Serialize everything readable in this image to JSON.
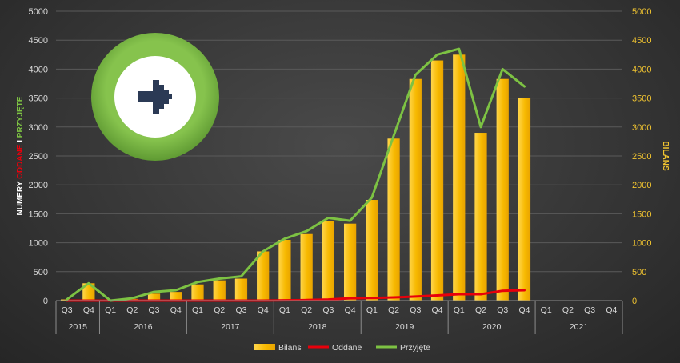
{
  "chart_data": {
    "type": "bar",
    "categories": [
      "Q3",
      "Q4",
      "Q1",
      "Q2",
      "Q3",
      "Q4",
      "Q1",
      "Q2",
      "Q3",
      "Q4",
      "Q1",
      "Q2",
      "Q3",
      "Q4",
      "Q1",
      "Q2",
      "Q3",
      "Q4",
      "Q1",
      "Q2",
      "Q3",
      "Q4",
      "Q1",
      "Q2",
      "Q3",
      "Q4"
    ],
    "years": [
      {
        "label": "2015",
        "span": 2
      },
      {
        "label": "2016",
        "span": 4
      },
      {
        "label": "2017",
        "span": 4
      },
      {
        "label": "2018",
        "span": 4
      },
      {
        "label": "2019",
        "span": 4
      },
      {
        "label": "2020",
        "span": 4
      },
      {
        "label": "2021",
        "span": 4
      }
    ],
    "series": [
      {
        "name": "Bilans",
        "type": "bar",
        "color": "#f5b800",
        "values": [
          20,
          300,
          0,
          30,
          120,
          150,
          280,
          350,
          380,
          850,
          1050,
          1150,
          1370,
          1330,
          1740,
          2800,
          3830,
          4150,
          4250,
          2900,
          3830,
          3500,
          null,
          null,
          null,
          null
        ]
      },
      {
        "name": "Oddane",
        "type": "line",
        "color": "#e8000b",
        "values": [
          0,
          0,
          0,
          0,
          0,
          0,
          0,
          0,
          0,
          0,
          5,
          10,
          20,
          40,
          45,
          55,
          70,
          90,
          110,
          110,
          170,
          180,
          null,
          null,
          null,
          null
        ]
      },
      {
        "name": "Przyjęte",
        "type": "line",
        "color": "#7dc243",
        "values": [
          20,
          300,
          0,
          40,
          150,
          180,
          320,
          380,
          420,
          850,
          1070,
          1200,
          1430,
          1380,
          1780,
          2850,
          3900,
          4250,
          4350,
          3000,
          4000,
          3700,
          null,
          null,
          null,
          null
        ]
      }
    ],
    "ylim": [
      0,
      5000
    ],
    "y_ticks": [
      "0",
      "500",
      "1000",
      "1500",
      "2000",
      "2500",
      "3000",
      "3500",
      "4000",
      "4500",
      "5000"
    ],
    "y2lim": [
      0,
      5000
    ],
    "y2_ticks": [
      "0",
      "500",
      "1000",
      "1500",
      "2000",
      "2500",
      "3000",
      "3500",
      "4000",
      "4500",
      "5000"
    ],
    "ylabel_parts": [
      {
        "text": "NUMERY ",
        "color": "#ffffff"
      },
      {
        "text": "ODDANE",
        "color": "#e8000b"
      },
      {
        "text": " I ",
        "color": "#ffffff"
      },
      {
        "text": "PRZYJĘTE",
        "color": "#7dc243"
      }
    ],
    "y2label": "BILANS",
    "legend_position": "bottom-center",
    "grid": true
  },
  "logo": {
    "name": "arrow-logo",
    "ring_color": "#7ab845",
    "inner_color": "#ffffff",
    "arrow_color": "#2b3a55"
  }
}
